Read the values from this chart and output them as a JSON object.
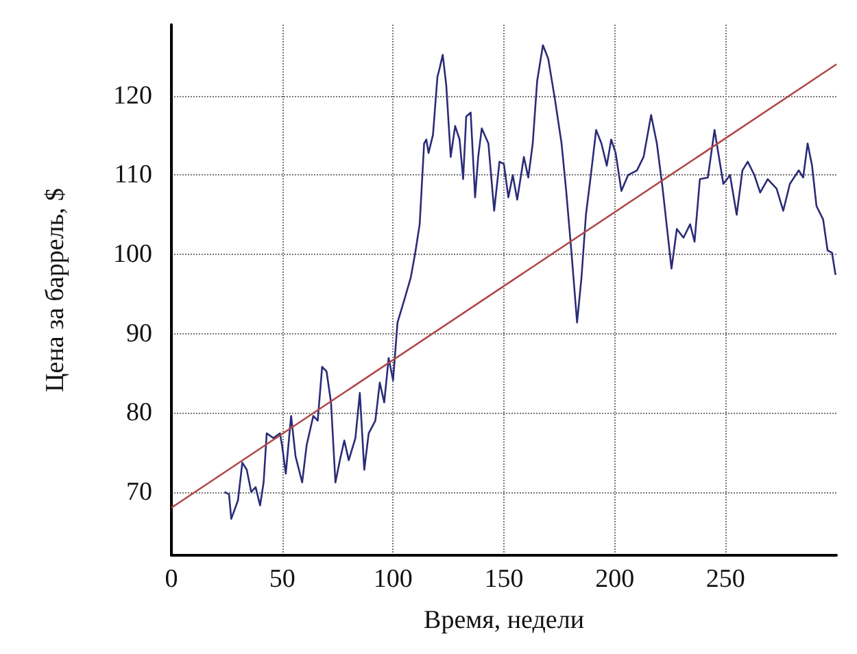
{
  "chart_data": {
    "type": "line",
    "xlabel": "Время, недели",
    "ylabel": "Цена за баррель, $",
    "xlim": [
      0,
      300
    ],
    "xticks": [
      0,
      50,
      100,
      150,
      200,
      250
    ],
    "ylim": [
      62,
      129
    ],
    "yticks": [
      70,
      80,
      90,
      100,
      110,
      120
    ],
    "grid": true,
    "marker": "none",
    "line_style": "solid",
    "series": [
      {
        "color": "#2b2b78",
        "x": [
          24,
          26,
          27,
          30,
          32,
          34,
          36,
          38,
          40,
          41.6,
          43,
          46,
          49,
          50,
          51.6,
          54,
          56,
          59,
          61,
          64,
          66,
          68,
          70,
          72,
          74,
          76,
          78,
          80,
          83,
          85,
          87,
          89,
          92,
          94,
          96,
          98,
          100,
          102,
          105,
          108,
          110,
          112,
          114,
          115,
          116,
          118,
          120,
          121,
          122.4,
          124,
          126,
          128,
          130,
          131.6,
          133,
          135,
          137,
          138.4,
          140,
          143,
          145.6,
          148,
          150,
          152,
          154,
          156,
          159,
          161,
          163,
          165,
          167.6,
          170,
          173,
          176,
          178,
          180.4,
          183,
          185,
          187,
          189,
          191.6,
          194,
          196.4,
          198.4,
          200.4,
          203,
          206,
          210,
          213,
          216.4,
          219,
          221.6,
          225.6,
          228,
          231,
          234,
          236,
          238.4,
          242,
          245,
          247,
          249,
          252,
          255,
          257.6,
          260,
          263,
          265.6,
          269,
          273,
          276,
          279,
          283,
          285,
          287,
          289,
          291,
          294,
          296,
          298,
          299.6
        ],
        "values": [
          70,
          69.7,
          66.6,
          68.9,
          73.7,
          72.8,
          70,
          70.6,
          68.3,
          71.2,
          77.4,
          76.8,
          77.4,
          75.7,
          72.3,
          79.6,
          74.5,
          71.2,
          75.9,
          79.6,
          79,
          85.8,
          85.2,
          81.3,
          71.2,
          74,
          76.5,
          74,
          76.8,
          82.5,
          72.8,
          77.4,
          79,
          83.8,
          81.3,
          86.9,
          84.1,
          91.4,
          94.2,
          97.1,
          100.2,
          103.8,
          114,
          114.5,
          112.8,
          115.1,
          122.4,
          123.5,
          125.2,
          121.3,
          112.3,
          116.2,
          114.5,
          109.5,
          117.4,
          117.9,
          107.2,
          112.3,
          115.9,
          114,
          105.5,
          111.7,
          111.4,
          107.2,
          110,
          106.9,
          112.3,
          109.7,
          114,
          121.9,
          126.4,
          124.7,
          119.6,
          114,
          108.3,
          100.5,
          91.4,
          97.1,
          105,
          109.5,
          115.7,
          114,
          111.2,
          114.5,
          112.8,
          108,
          110,
          110.6,
          112.3,
          117.6,
          114,
          108.3,
          98.2,
          103.2,
          102.1,
          103.8,
          101.6,
          109.5,
          109.7,
          115.7,
          112.3,
          108.9,
          110,
          105,
          110.6,
          111.7,
          110,
          107.8,
          109.5,
          108.3,
          105.5,
          108.9,
          110.6,
          109.7,
          114,
          111.2,
          106.1,
          104.4,
          100.5,
          100.2,
          97.4
        ]
      },
      {
        "color": "#b04848",
        "x": [
          0,
          300
        ],
        "values": [
          68,
          124
        ]
      }
    ]
  }
}
